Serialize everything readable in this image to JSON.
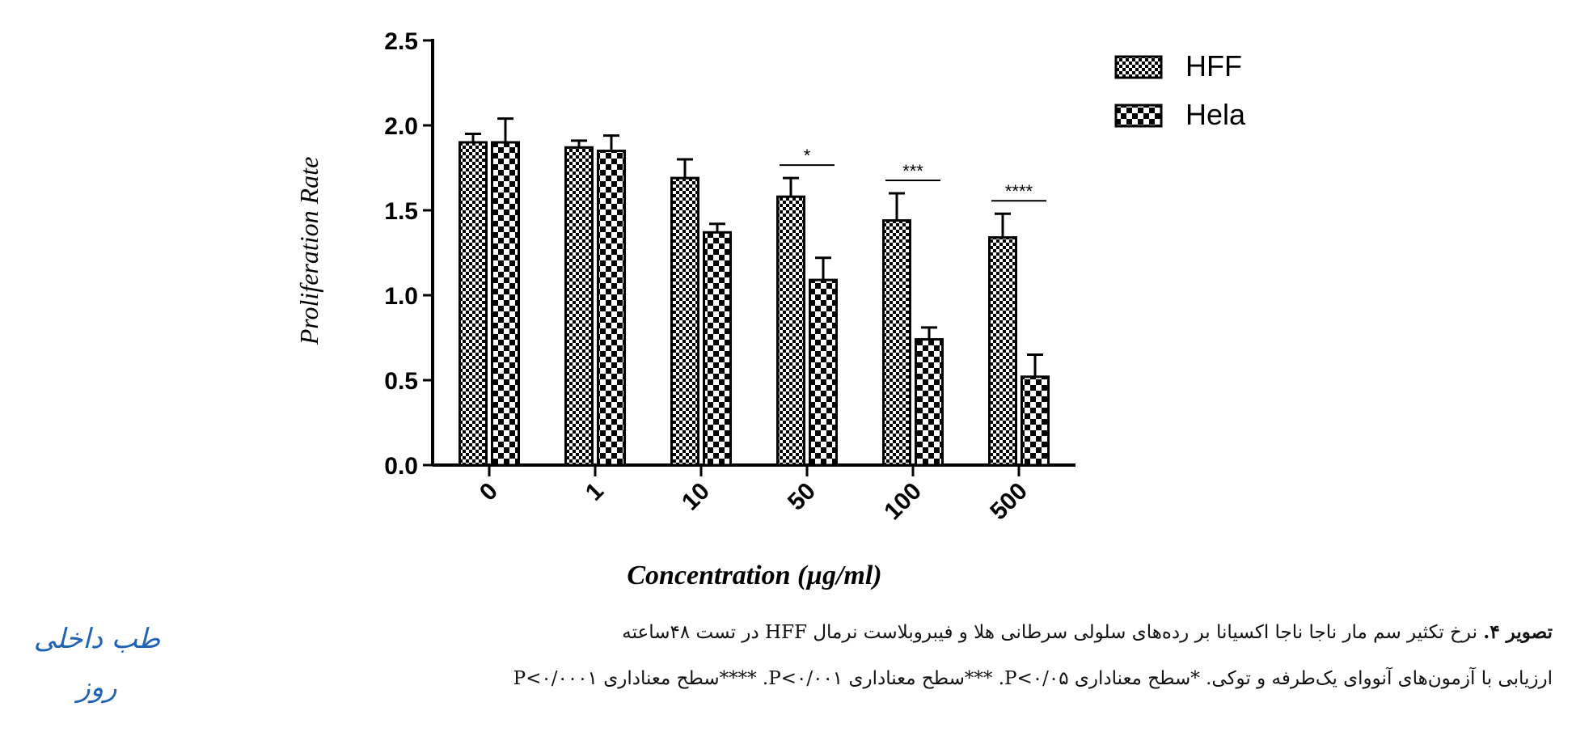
{
  "chart_data": {
    "type": "bar",
    "xlabel": "Concentration (µg/ml)",
    "ylabel": "Proliferation Rate",
    "categories": [
      "0",
      "1",
      "10",
      "50",
      "100",
      "500"
    ],
    "ylim": [
      0,
      2.5
    ],
    "yticks": [
      "0.0",
      "0.5",
      "1.0",
      "1.5",
      "2.0",
      "2.5"
    ],
    "legend_position": "top-right",
    "series": [
      {
        "name": "HFF",
        "values": [
          1.9,
          1.87,
          1.69,
          1.58,
          1.44,
          1.34
        ],
        "errors": [
          0.05,
          0.04,
          0.11,
          0.11,
          0.16,
          0.14
        ],
        "pattern": "fine-checker"
      },
      {
        "name": "Hela",
        "values": [
          1.9,
          1.85,
          1.37,
          1.09,
          0.74,
          0.52
        ],
        "errors": [
          0.14,
          0.09,
          0.05,
          0.13,
          0.07,
          0.13
        ],
        "pattern": "coarse-checker"
      }
    ],
    "significance": [
      {
        "category": "50",
        "label": "*"
      },
      {
        "category": "100",
        "label": "***"
      },
      {
        "category": "500",
        "label": "****"
      }
    ],
    "colors": {
      "bar_fill": "#ffffff",
      "bar_pattern": "#000000",
      "axis": "#000000"
    }
  },
  "caption": {
    "line1_bold": "تصویر ۴.",
    "line1": " نرخ تکثیر سم مار ناجا ناجا اکسیانا بر رده‌های سلولی سرطانی هلا و فیبروبلاست نرمال HFF در تست ۴۸ساعته",
    "line2": "ارزیابی با آزمون‌های آنووای یک‌طرفه و توکی. *سطح معناداری P<۰/۰۵. ***سطح معناداری P<۰/۰۰۱. ****سطح معناداری P<۰/۰۰۰۱"
  },
  "logo_text": "طب داخلی روز"
}
